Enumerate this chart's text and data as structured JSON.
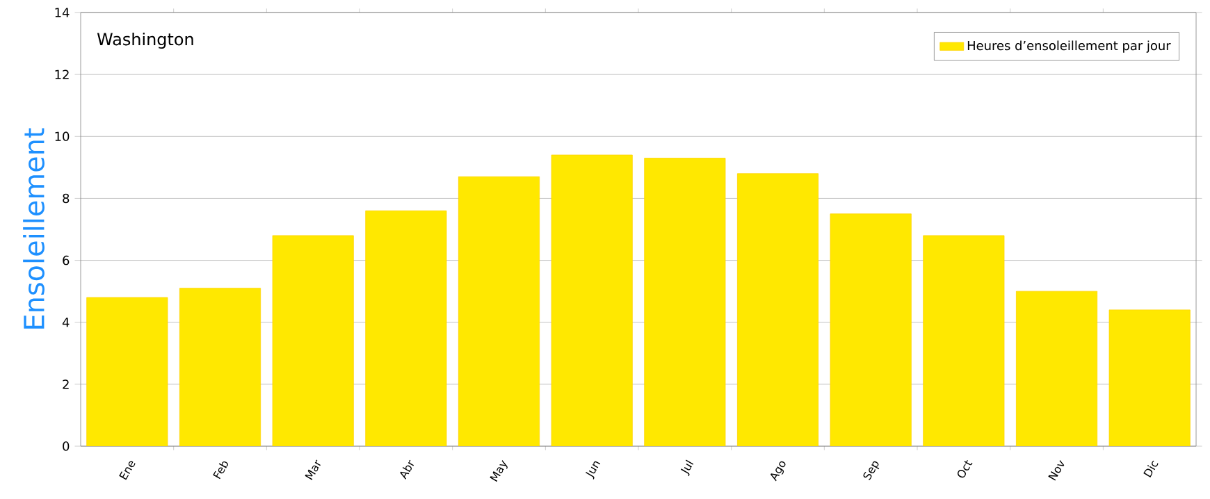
{
  "chart_data": {
    "type": "bar",
    "title": "Washington",
    "ylabel": "Ensoleillement",
    "categories": [
      "Ene",
      "Feb",
      "Mar",
      "Abr",
      "May",
      "Jun",
      "Jul",
      "Ago",
      "Sep",
      "Oct",
      "Nov",
      "Dic"
    ],
    "series": [
      {
        "name": "Heures d’ensoleillement par jour",
        "color": "#ffe800",
        "values": [
          4.8,
          5.1,
          6.8,
          7.6,
          8.7,
          9.4,
          9.3,
          8.8,
          7.5,
          6.8,
          5.0,
          4.4
        ]
      }
    ],
    "ylim": [
      0,
      14
    ],
    "yticks": [
      0,
      2,
      4,
      6,
      8,
      10,
      12,
      14
    ],
    "grid": "y",
    "legend": "top right"
  }
}
